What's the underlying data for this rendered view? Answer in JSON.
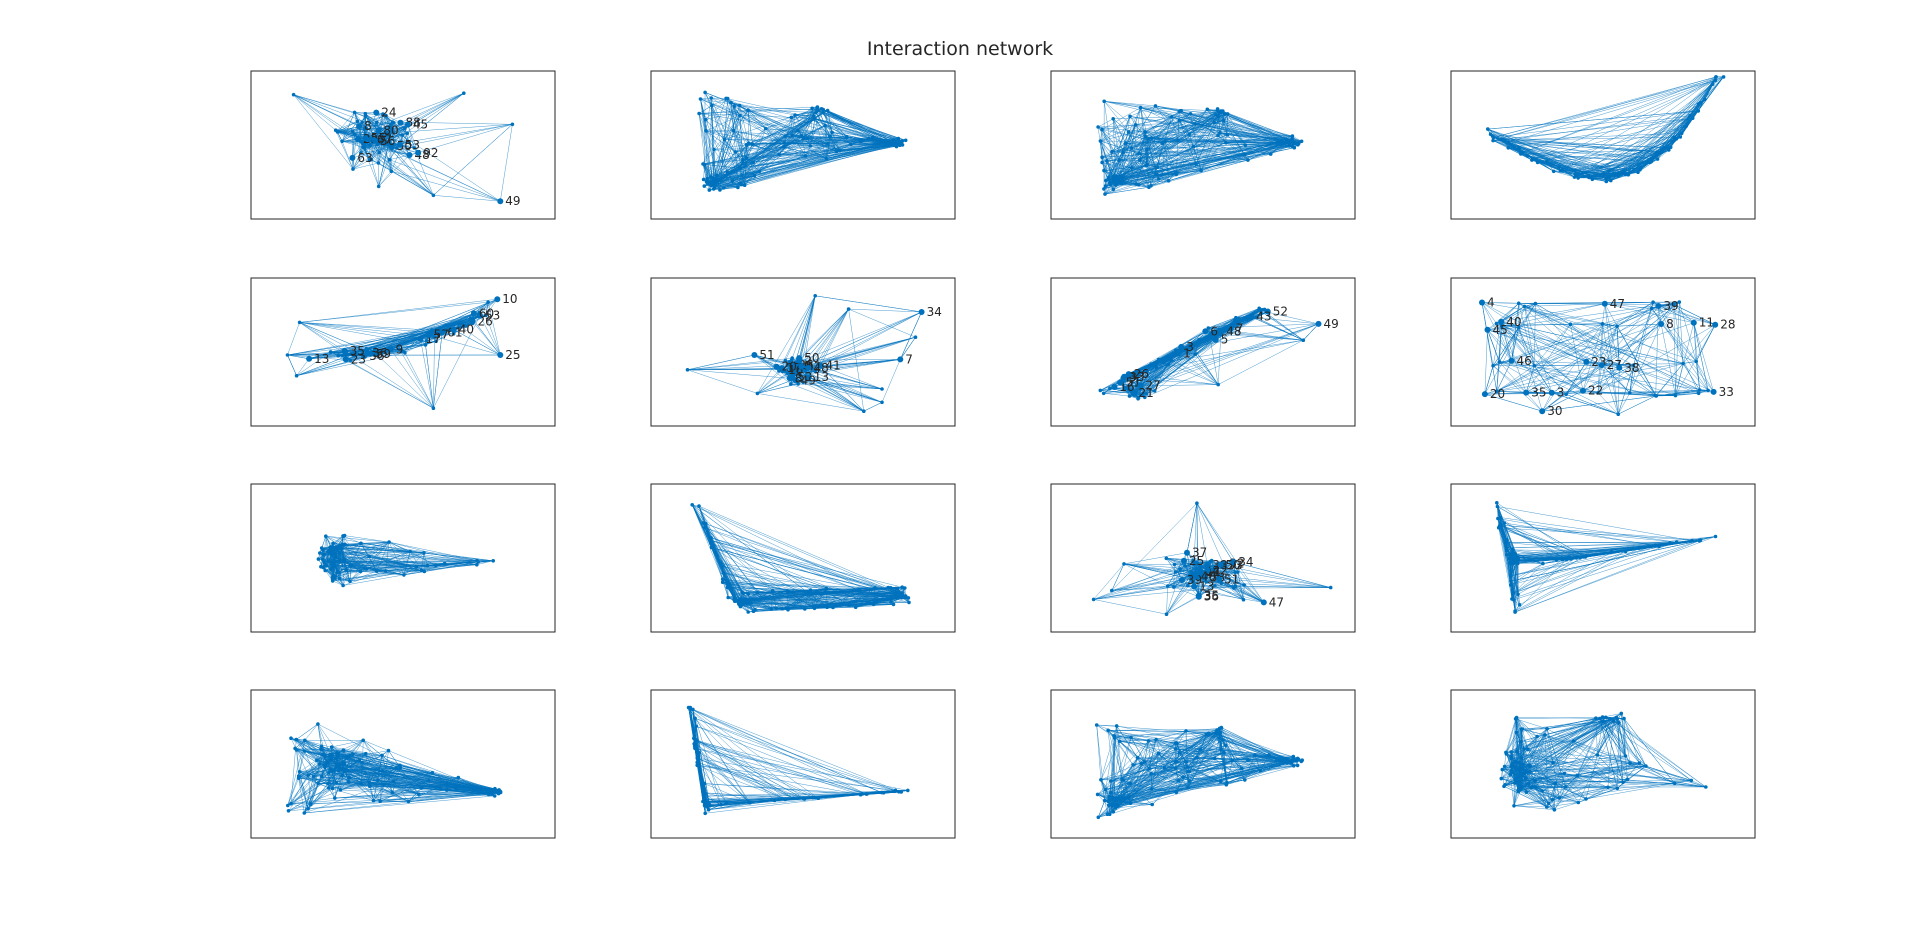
{
  "figure": {
    "title": "Interaction network",
    "colors": {
      "edge": "#0072BD",
      "node": "#0072BD",
      "axes_border": "#262626",
      "label": "#262626",
      "background": "#ffffff"
    }
  },
  "chart_data": [
    {
      "type": "network",
      "panel": 1,
      "shape": "dense-cluster-labeled",
      "grid": false,
      "node_labels": [
        "88",
        "22",
        "8",
        "67",
        "55",
        "24",
        "50",
        "56",
        "63",
        "80",
        "49",
        "45",
        "48",
        "53",
        "92"
      ]
    },
    {
      "type": "network",
      "panel": 2,
      "shape": "triangle-right",
      "grid": false,
      "node_labels": []
    },
    {
      "type": "network",
      "panel": 3,
      "shape": "triangle-right",
      "grid": false,
      "node_labels": []
    },
    {
      "type": "network",
      "panel": 4,
      "shape": "curve-up",
      "grid": false,
      "node_labels": []
    },
    {
      "type": "network",
      "panel": 5,
      "shape": "arc-labeled",
      "grid": false,
      "node_labels": [
        "10",
        "9",
        "61",
        "13",
        "17",
        "57",
        "56",
        "23",
        "25",
        "26",
        "59",
        "53",
        "36",
        "35",
        "60",
        "40"
      ]
    },
    {
      "type": "network",
      "panel": 6,
      "shape": "star-labeled",
      "grid": false,
      "node_labels": [
        "50",
        "26",
        "9",
        "16",
        "17",
        "52",
        "13",
        "34",
        "51",
        "49",
        "8",
        "2",
        "20",
        "42",
        "41",
        "48",
        "7"
      ]
    },
    {
      "type": "network",
      "panel": 7,
      "shape": "diagonal-labeled",
      "grid": false,
      "node_labels": [
        "5",
        "1",
        "9",
        "7",
        "16",
        "3",
        "6",
        "52",
        "51",
        "27",
        "21",
        "49",
        "26",
        "33",
        "43",
        "48"
      ]
    },
    {
      "type": "network",
      "panel": 8,
      "shape": "layered-labeled",
      "grid": false,
      "node_labels": [
        "4",
        "33",
        "8",
        "11",
        "23",
        "35",
        "45",
        "39",
        "46",
        "20",
        "3",
        "47",
        "22",
        "30",
        "27",
        "38",
        "40",
        "28"
      ]
    },
    {
      "type": "network",
      "panel": 9,
      "shape": "fan-right",
      "grid": false,
      "node_labels": []
    },
    {
      "type": "network",
      "panel": 10,
      "shape": "L-rail",
      "grid": false,
      "node_labels": []
    },
    {
      "type": "network",
      "panel": 11,
      "shape": "blob-labeled",
      "grid": false,
      "node_labels": [
        "37",
        "17",
        "35",
        "44",
        "32",
        "33",
        "39",
        "34",
        "53",
        "47",
        "51",
        "38",
        "42",
        "40",
        "13",
        "36",
        "50",
        "25"
      ]
    },
    {
      "type": "network",
      "panel": 12,
      "shape": "Y-rail",
      "grid": false,
      "node_labels": []
    },
    {
      "type": "network",
      "panel": 13,
      "shape": "dense-fan",
      "grid": false,
      "node_labels": []
    },
    {
      "type": "network",
      "panel": 14,
      "shape": "L-rail-thin",
      "grid": false,
      "node_labels": []
    },
    {
      "type": "network",
      "panel": 15,
      "shape": "triangle-right",
      "grid": false,
      "node_labels": []
    },
    {
      "type": "network",
      "panel": 16,
      "shape": "spread-cluster",
      "grid": false,
      "node_labels": []
    }
  ]
}
